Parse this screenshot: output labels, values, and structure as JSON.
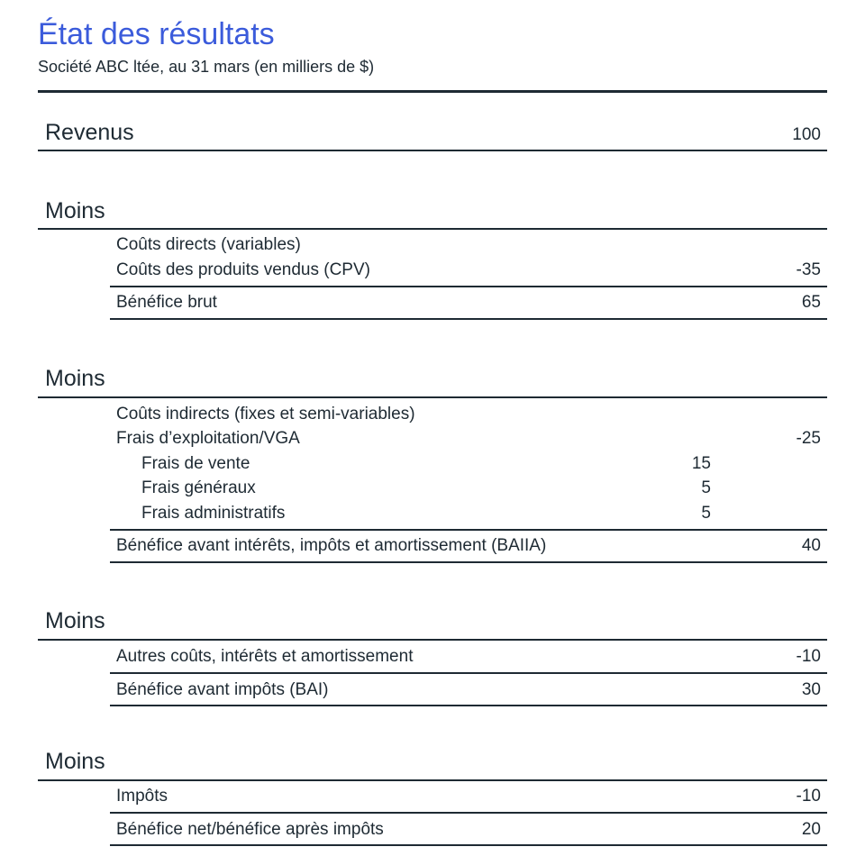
{
  "title": "État des résultats",
  "subtitle": "Société ABC ltée, au 31 mars (en milliers de $)",
  "revenue": {
    "label": "Revenus",
    "value": "100"
  },
  "less_label": "Moins",
  "section1": {
    "category": "Coûts directs (variables)",
    "item": {
      "label": "Coûts des produits vendus (CPV)",
      "value": "-35"
    },
    "result": {
      "label": "Bénéfice brut",
      "value": "65"
    }
  },
  "section2": {
    "category": "Coûts indirects (fixes et semi-variables)",
    "item": {
      "label": "Frais d’exploitation/VGA",
      "value": "-25"
    },
    "subitems": [
      {
        "label": "Frais de vente",
        "value": "15"
      },
      {
        "label": "Frais généraux",
        "value": "5"
      },
      {
        "label": "Frais administratifs",
        "value": "5"
      }
    ],
    "result": {
      "label": "Bénéfice avant intérêts, impôts et amortissement (BAIIA)",
      "value": "40"
    }
  },
  "section3": {
    "item": {
      "label": "Autres coûts, intérêts et amortissement",
      "value": "-10"
    },
    "result": {
      "label": "Bénéfice avant impôts (BAI)",
      "value": "30"
    }
  },
  "section4": {
    "item": {
      "label": "Impôts",
      "value": "-10"
    },
    "result": {
      "label": "Bénéfice net/bénéfice après impôts",
      "value": "20"
    }
  }
}
